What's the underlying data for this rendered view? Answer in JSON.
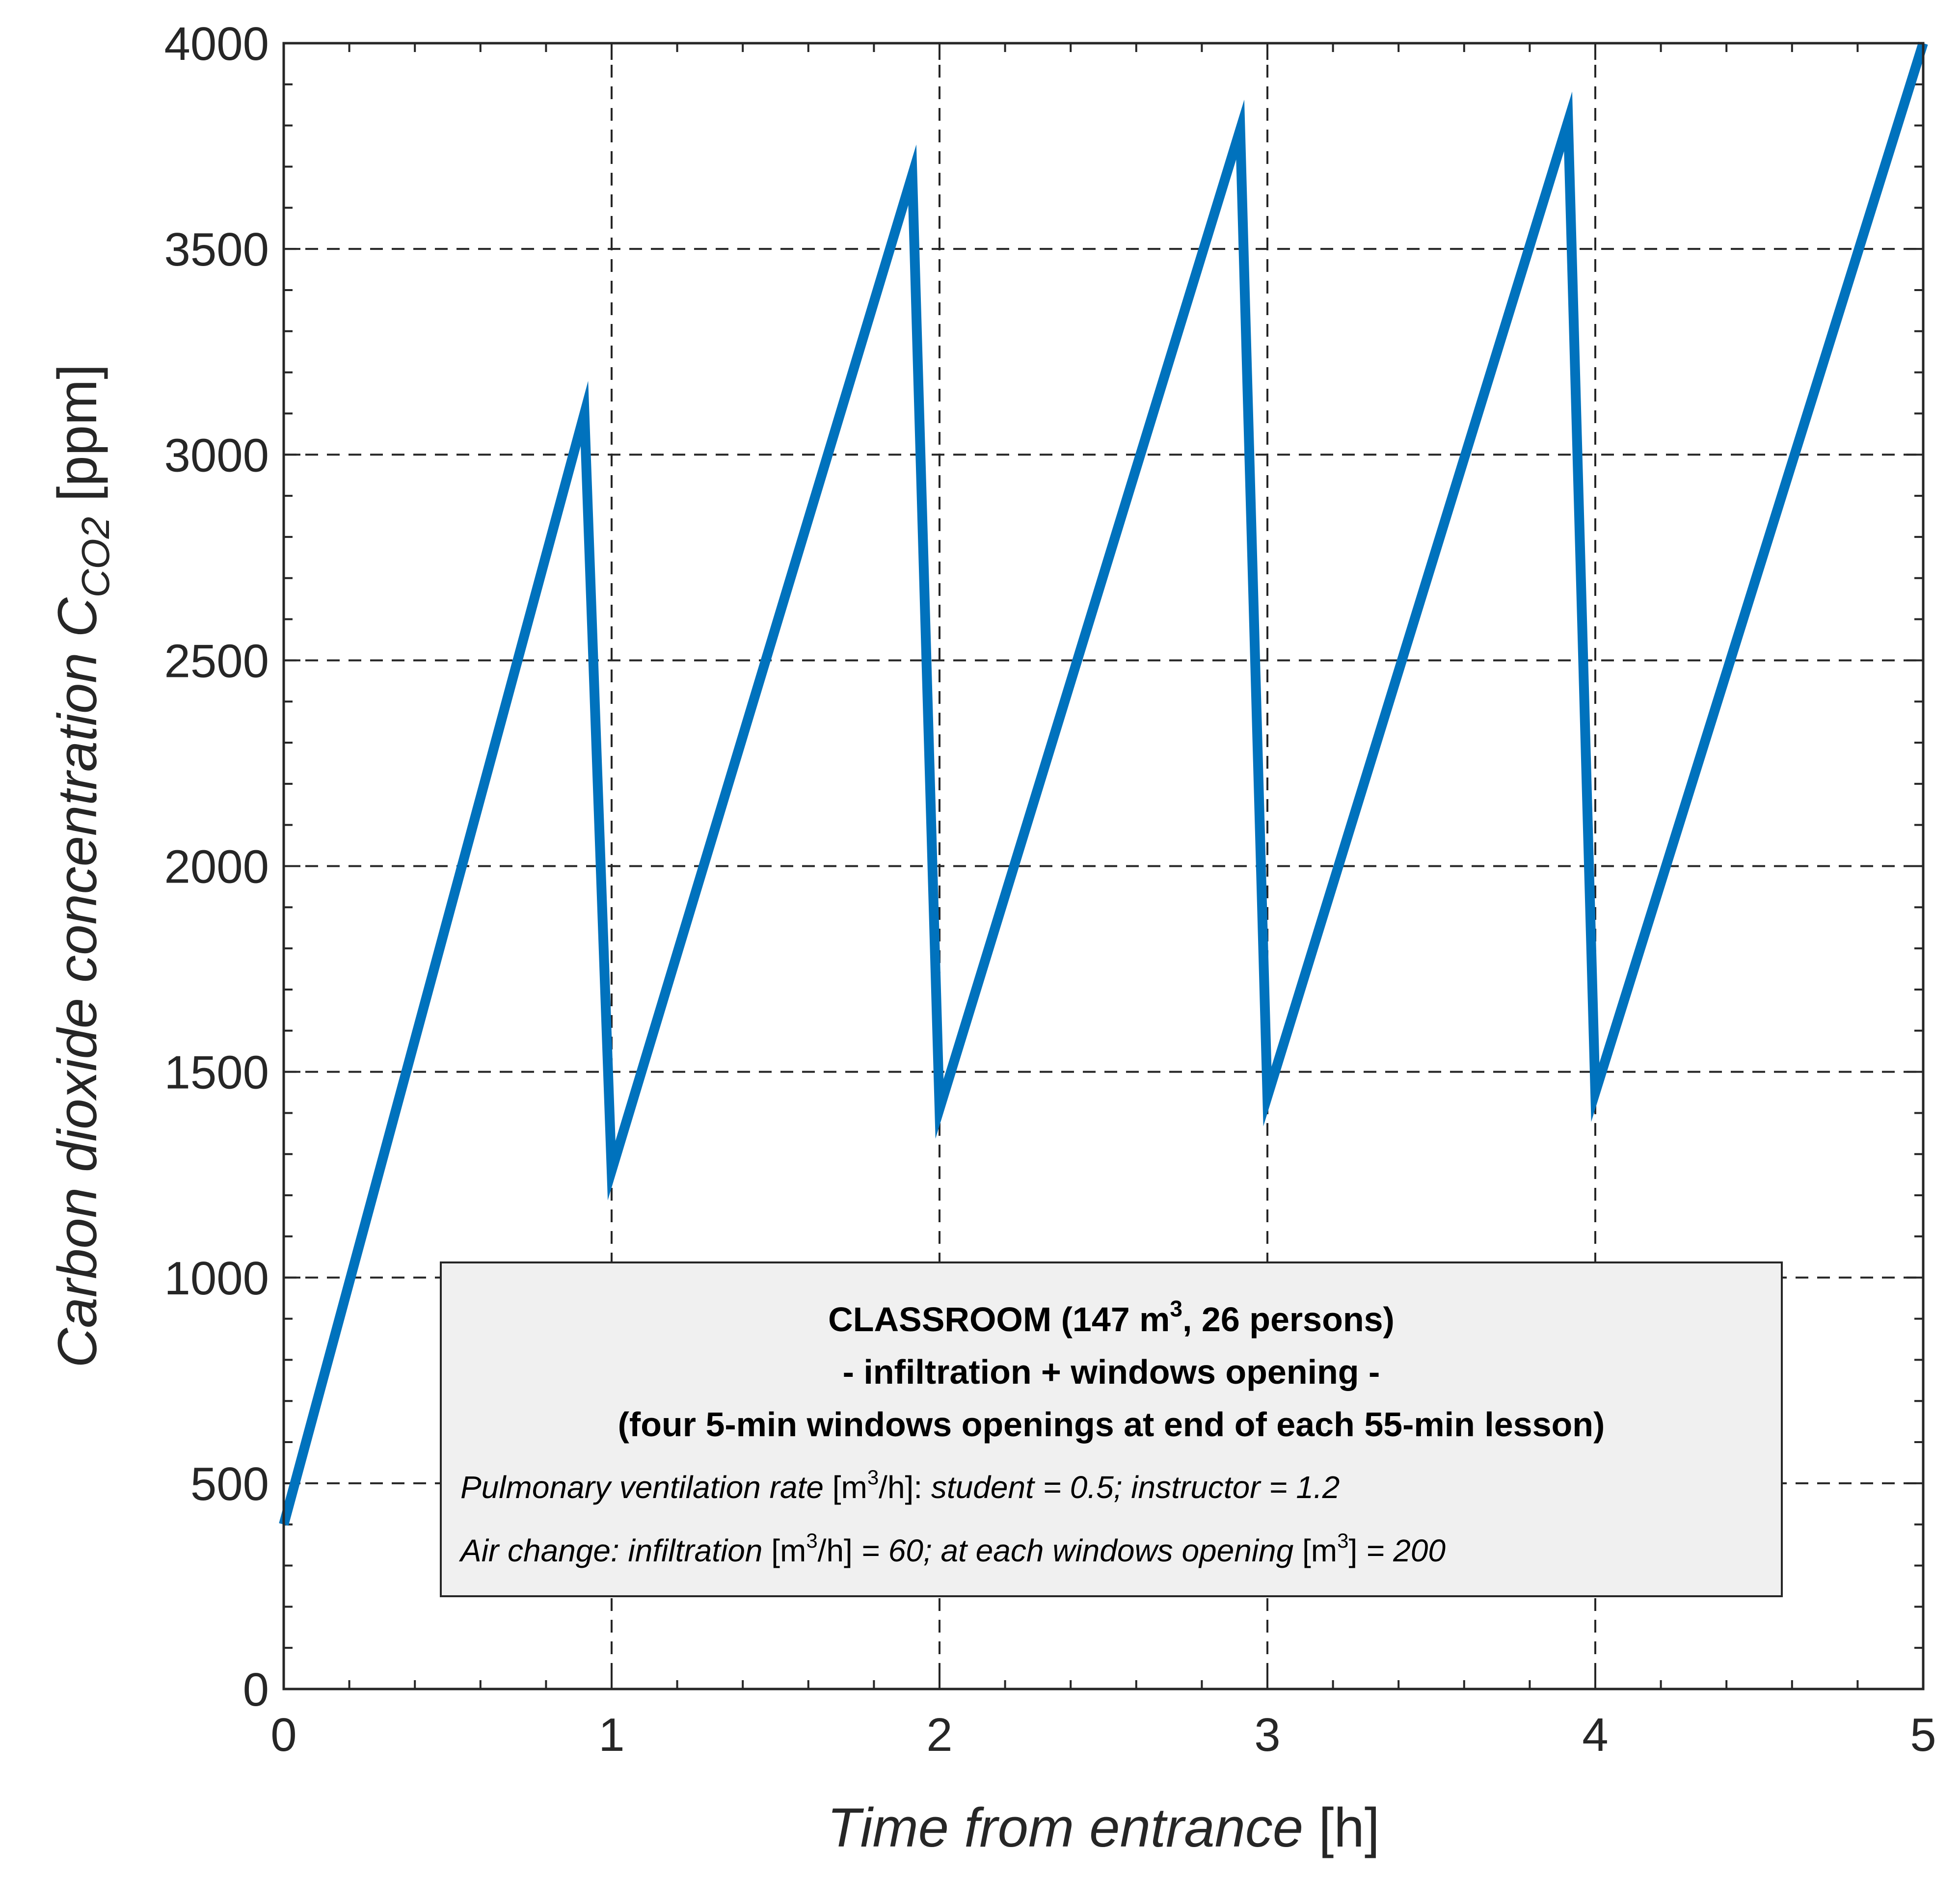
{
  "chart_data": {
    "type": "line",
    "xlabel": {
      "main": "Time from entrance",
      "unit": " [h]"
    },
    "ylabel": {
      "main": "Carbon dioxide concentration C",
      "sub": "CO2",
      "unit": " [ppm]"
    },
    "xlim": [
      0,
      5
    ],
    "ylim": [
      0,
      4000
    ],
    "xticks": [
      0,
      1,
      2,
      3,
      4,
      5
    ],
    "yticks": [
      0,
      500,
      1000,
      1500,
      2000,
      2500,
      3000,
      3500,
      4000
    ],
    "grid": true,
    "line_color": "#0072BD",
    "series": [
      {
        "x": [
          0,
          0.917,
          1.0,
          1.917,
          2.0,
          2.917,
          3.0,
          3.917,
          4.0,
          5.0
        ],
        "values": [
          400,
          3100,
          1260,
          3680,
          1410,
          3790,
          1440,
          3810,
          1450,
          4000
        ]
      }
    ],
    "annotation": {
      "title_line1": {
        "pre": "CLASSROOM (147 m",
        "sup": "3",
        "post": ", 26 persons)"
      },
      "title_line2": "- infiltration + windows opening -",
      "title_line3": "(four 5-min windows openings at end of each 55-min lesson)",
      "detail_line1": {
        "a": "Pulmonary ventilation rate",
        "b": " [m",
        "sup": "3",
        "c": "/h]: ",
        "d": "student = 0.5; instructor = 1.2"
      },
      "detail_line2": {
        "a": "Air change: infiltration",
        "b": " [m",
        "sup1": "3",
        "c": "/h] ",
        "d": "= 60; at each windows opening",
        "e": " [m",
        "sup2": "3",
        "f": "] ",
        "g": "= 200"
      }
    }
  }
}
